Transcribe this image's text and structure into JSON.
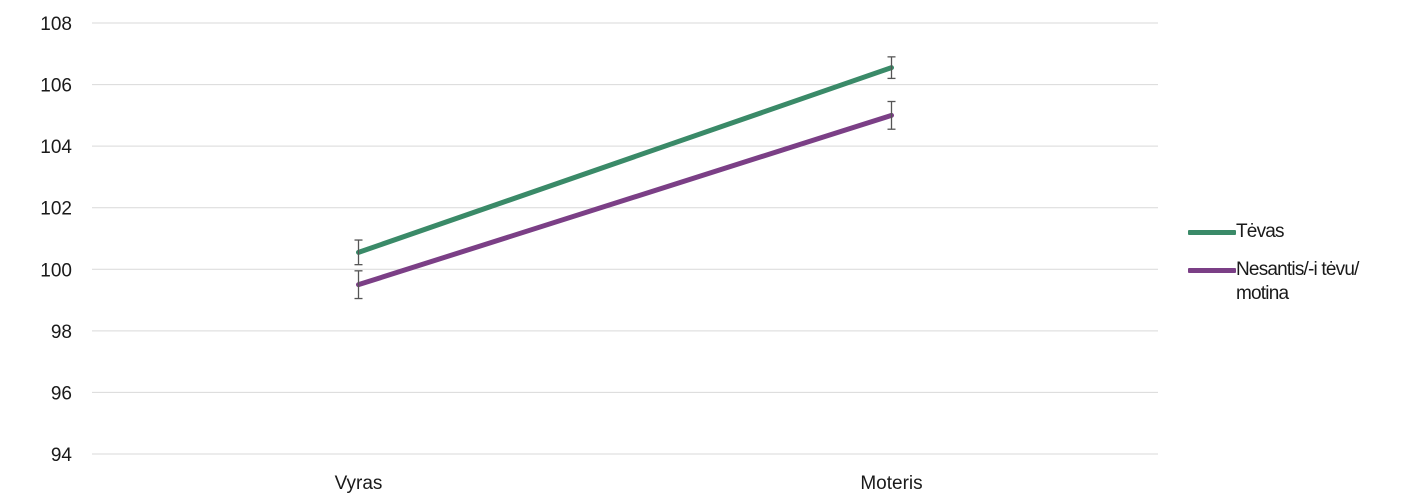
{
  "chart_data": {
    "type": "line",
    "categories": [
      "Vyras",
      "Moteris"
    ],
    "series": [
      {
        "name": "Tėvas",
        "color": "#3a8a68",
        "values": [
          100.55,
          106.55
        ],
        "error": [
          0.4,
          0.35
        ]
      },
      {
        "name": "Nesantis/-i tėvu/ motina",
        "color": "#7b3f86",
        "values": [
          99.5,
          105.0
        ],
        "error": [
          0.45,
          0.45
        ]
      }
    ],
    "ylim": [
      94,
      108
    ],
    "yticks": [
      94,
      96,
      98,
      100,
      102,
      104,
      106,
      108
    ],
    "grid": true,
    "legend_position": "right",
    "title": "",
    "xlabel": "",
    "ylabel": ""
  }
}
